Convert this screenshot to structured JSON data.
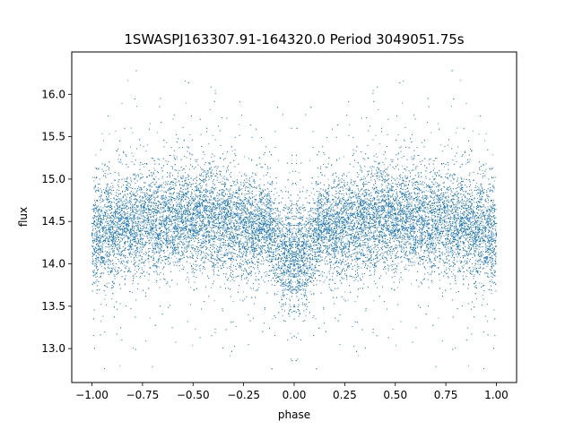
{
  "chart_data": {
    "type": "scatter",
    "title": "1SWASPJ163307.91-164320.0 Period 3049051.75s",
    "xlabel": "phase",
    "ylabel": "flux",
    "xlim": [
      -1.1,
      1.1
    ],
    "ylim": [
      12.6,
      16.5
    ],
    "xticks": [
      -1.0,
      -0.75,
      -0.5,
      -0.25,
      0.0,
      0.25,
      0.5,
      0.75,
      1.0
    ],
    "xtick_labels": [
      "−1.00",
      "−0.75",
      "−0.50",
      "−0.25",
      "0.00",
      "0.25",
      "0.50",
      "0.75",
      "1.00"
    ],
    "yticks": [
      13.0,
      13.5,
      14.0,
      14.5,
      15.0,
      15.5,
      16.0
    ],
    "ytick_labels": [
      "13.0",
      "13.5",
      "14.0",
      "14.5",
      "15.0",
      "15.5",
      "16.0"
    ],
    "grid": false,
    "legend": "none",
    "marker_color": "#1f77b4",
    "series": [
      {
        "x_range": [
          -1.0,
          1.0
        ],
        "mirrored": true,
        "point_count_approx": 24000,
        "y_center": 14.5,
        "y_typical_spread": [
          13.9,
          15.1
        ],
        "y_extreme_range": [
          12.72,
          16.3
        ],
        "phase_profile": [
          {
            "phase": 0.0,
            "y_center": 14.1
          },
          {
            "phase": 0.06,
            "y_center": 14.1
          },
          {
            "phase": 0.12,
            "y_center": 14.45
          },
          {
            "phase": 0.25,
            "y_center": 14.45
          },
          {
            "phase": 0.5,
            "y_center": 14.55
          },
          {
            "phase": 0.75,
            "y_center": 14.5
          },
          {
            "phase": 0.92,
            "y_center": 14.4
          },
          {
            "phase": 1.0,
            "y_center": 14.3
          }
        ]
      }
    ]
  }
}
